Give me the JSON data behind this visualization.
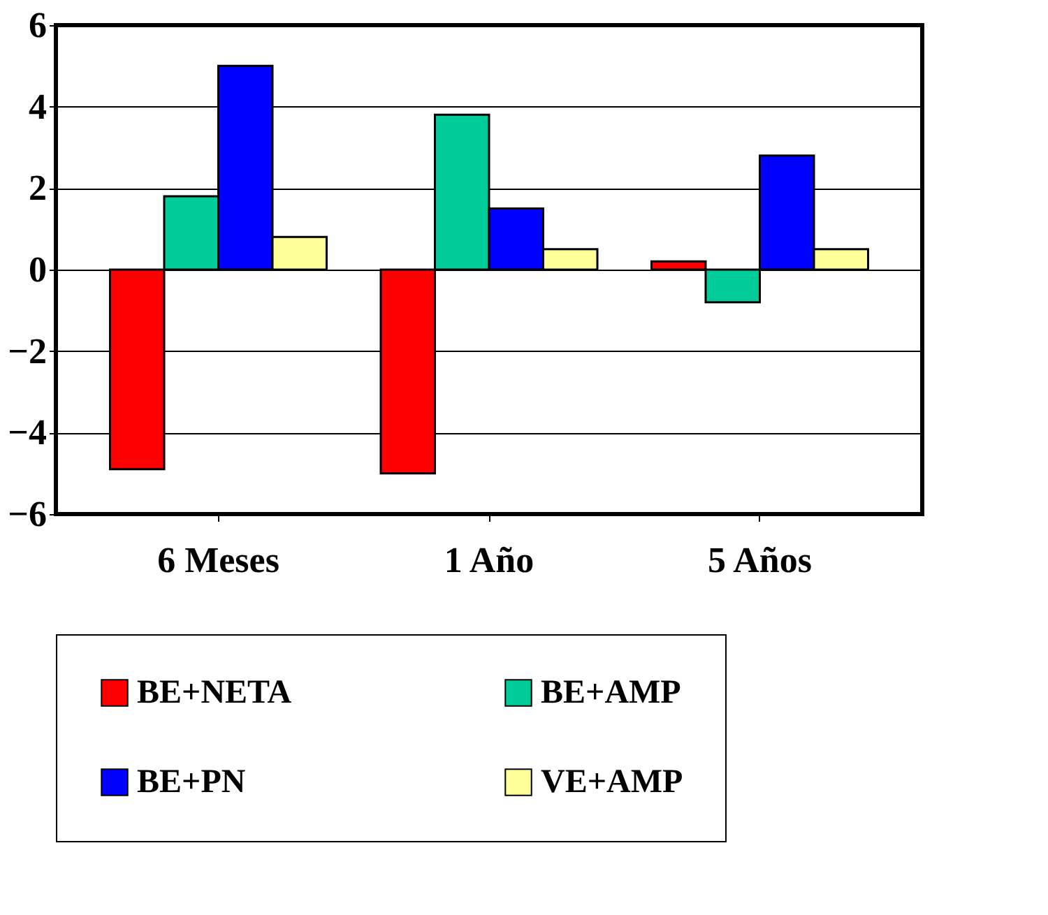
{
  "chart_data": {
    "type": "bar",
    "categories": [
      "6 Meses",
      "1 Año",
      "5 Años"
    ],
    "series": [
      {
        "name": "BE+NETA",
        "color": "#ff0000",
        "values": [
          -4.9,
          -5.0,
          0.2
        ]
      },
      {
        "name": "BE+AMP",
        "color": "#00cc99",
        "values": [
          1.8,
          3.8,
          -0.8
        ]
      },
      {
        "name": "BE+PN",
        "color": "#0000ff",
        "values": [
          5.0,
          1.5,
          2.8
        ]
      },
      {
        "name": "VE+AMP",
        "color": "#ffff99",
        "values": [
          0.8,
          0.5,
          0.5
        ]
      }
    ],
    "ylim": [
      -6,
      6
    ],
    "yticks": [
      -6,
      -4,
      -2,
      0,
      2,
      4,
      6
    ],
    "grid": "y",
    "legend": "bottom"
  }
}
